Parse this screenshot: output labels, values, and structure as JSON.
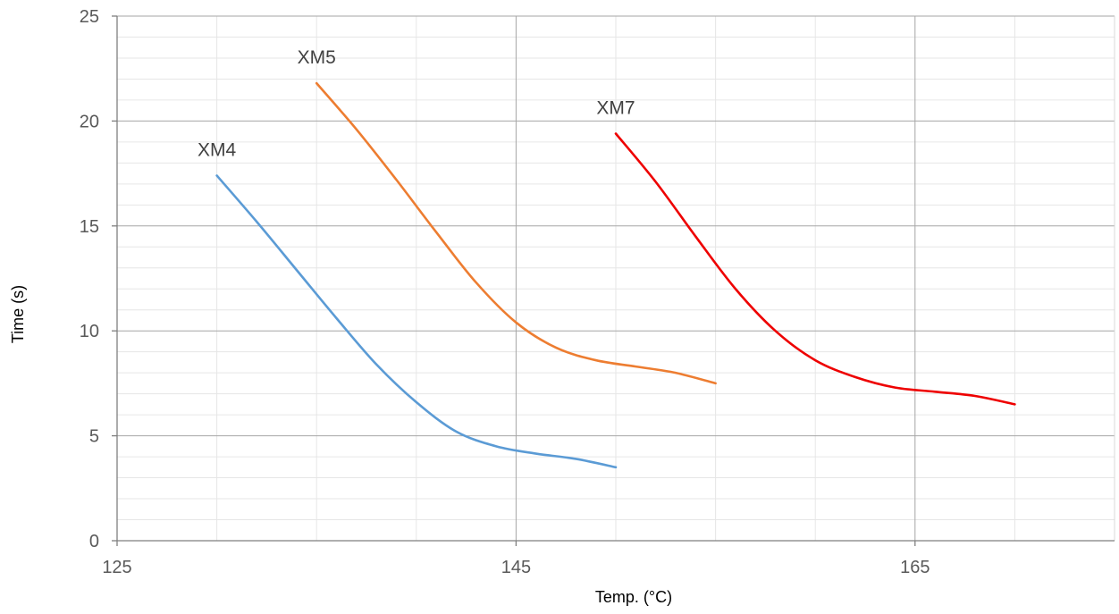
{
  "chart_data": {
    "type": "line",
    "xlabel": "Temp. (°C)",
    "ylabel": "Time (s)",
    "xlim": [
      125,
      175
    ],
    "ylim": [
      0,
      25
    ],
    "x_ticks": [
      125,
      145,
      165
    ],
    "y_ticks": [
      0,
      5,
      10,
      15,
      20,
      25
    ],
    "grid": true,
    "legend": "none",
    "series": [
      {
        "name": "XM4",
        "color": "#5b9bd5",
        "x": [
          130,
          132,
          134,
          136,
          138,
          140,
          142,
          144,
          146,
          148,
          150
        ],
        "y": [
          17.4,
          15.2,
          12.9,
          10.6,
          8.4,
          6.6,
          5.2,
          4.5,
          4.15,
          3.9,
          3.5
        ]
      },
      {
        "name": "XM5",
        "color": "#ed7d31",
        "x": [
          135,
          137,
          139,
          141,
          143,
          145,
          147,
          149,
          151,
          153,
          155
        ],
        "y": [
          21.8,
          19.6,
          17.2,
          14.7,
          12.3,
          10.4,
          9.2,
          8.6,
          8.3,
          8.0,
          7.5
        ]
      },
      {
        "name": "XM7",
        "color": "#ee0000",
        "x": [
          150,
          152,
          154,
          156,
          158,
          160,
          162,
          164,
          166,
          168,
          170
        ],
        "y": [
          19.4,
          17.1,
          14.5,
          12.0,
          10.0,
          8.6,
          7.8,
          7.3,
          7.1,
          6.9,
          6.5
        ]
      }
    ]
  }
}
